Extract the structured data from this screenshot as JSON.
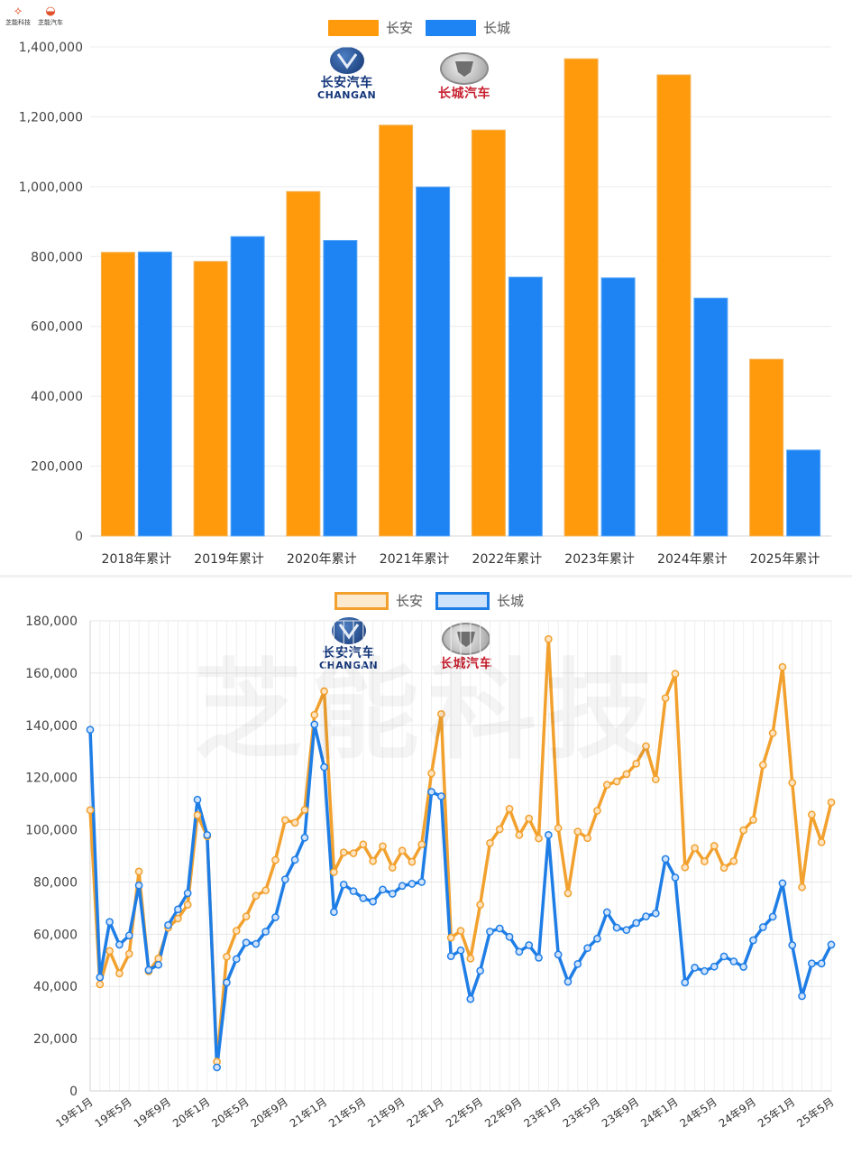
{
  "watermark": {
    "brand1": "芝能科技",
    "brand2": "芝能汽车",
    "big": "芝能科技"
  },
  "logos": {
    "changan_cn": "长安汽车",
    "changan_en": "CHANGAN",
    "greatwall_cn": "长城汽车"
  },
  "colors": {
    "changan": "#FF9A0D",
    "greatwall": "#1E84F4",
    "changan_line": "#F2A12E",
    "greatwall_line": "#1F7EE6"
  },
  "chart_data": [
    {
      "type": "bar",
      "categories": [
        "2018年累计",
        "2019年累计",
        "2020年累计",
        "2021年累计",
        "2022年累计",
        "2023年累计",
        "2024年累计",
        "2025年累计"
      ],
      "series": [
        {
          "name": "长安",
          "values": [
            812000,
            786000,
            986000,
            1176000,
            1162000,
            1366000,
            1320000,
            506000
          ]
        },
        {
          "name": "长城",
          "values": [
            813000,
            857000,
            846000,
            999000,
            741000,
            739000,
            681000,
            246000
          ]
        }
      ],
      "ylim": [
        0,
        1400000
      ],
      "yticks": [
        "0",
        "200,000",
        "400,000",
        "600,000",
        "800,000",
        "1,000,000",
        "1,200,000",
        "1,400,000"
      ],
      "grid": true,
      "legend": "top-center"
    },
    {
      "type": "line",
      "x": [
        "19年1月",
        "19年2月",
        "19年3月",
        "19年4月",
        "19年5月",
        "19年6月",
        "19年7月",
        "19年8月",
        "19年9月",
        "19年10月",
        "19年11月",
        "19年12月",
        "20年1月",
        "20年2月",
        "20年3月",
        "20年4月",
        "20年5月",
        "20年6月",
        "20年7月",
        "20年8月",
        "20年9月",
        "20年10月",
        "20年11月",
        "20年12月",
        "21年1月",
        "21年2月",
        "21年3月",
        "21年4月",
        "21年5月",
        "21年6月",
        "21年7月",
        "21年8月",
        "21年9月",
        "21年10月",
        "21年11月",
        "21年12月",
        "22年1月",
        "22年2月",
        "22年3月",
        "22年4月",
        "22年5月",
        "22年6月",
        "22年7月",
        "22年8月",
        "22年9月",
        "22年10月",
        "22年11月",
        "22年12月",
        "23年1月",
        "23年2月",
        "23年3月",
        "23年4月",
        "23年5月",
        "23年6月",
        "23年7月",
        "23年8月",
        "23年9月",
        "23年10月",
        "23年11月",
        "23年12月",
        "24年1月",
        "24年2月",
        "24年3月",
        "24年4月",
        "24年5月",
        "24年6月",
        "24年7月",
        "24年8月",
        "24年9月",
        "24年10月",
        "24年11月",
        "24年12月",
        "25年1月",
        "25年2月",
        "25年3月",
        "25年4月",
        "25年5月"
      ],
      "xticks": [
        "19年1月",
        "19年5月",
        "19年9月",
        "20年1月",
        "20年5月",
        "20年9月",
        "21年1月",
        "21年5月",
        "21年9月",
        "22年1月",
        "22年5月",
        "22年9月",
        "23年1月",
        "23年5月",
        "23年9月",
        "24年1月",
        "24年5月",
        "24年9月",
        "25年1月",
        "25年5月"
      ],
      "series": [
        {
          "name": "长安",
          "values": [
            107500,
            40800,
            53600,
            45000,
            52500,
            84000,
            45800,
            50700,
            62500,
            66000,
            71300,
            105600,
            97500,
            11200,
            51400,
            61300,
            66800,
            74700,
            76800,
            88400,
            103700,
            102700,
            107600,
            144000,
            153000,
            83800,
            91300,
            91000,
            94400,
            88000,
            93700,
            85500,
            92000,
            87700,
            94400,
            121600,
            144300,
            58700,
            61300,
            50700,
            71300,
            94900,
            100200,
            108000,
            98000,
            104300,
            96700,
            173000,
            100600,
            75700,
            99300,
            96800,
            107300,
            117200,
            118500,
            121300,
            125300,
            132000,
            119300,
            150400,
            159700,
            85600,
            93000,
            87900,
            93800,
            85400,
            88000,
            99800,
            103800,
            124800,
            137000,
            162300,
            118000,
            78000,
            105800,
            95200,
            110500
          ]
        },
        {
          "name": "长城",
          "values": [
            138300,
            43500,
            64700,
            56000,
            59500,
            78700,
            46300,
            48300,
            63500,
            69500,
            75700,
            111500,
            98000,
            9000,
            41500,
            50500,
            56800,
            56300,
            61000,
            66500,
            81000,
            88500,
            97000,
            140300,
            124000,
            68500,
            79000,
            76500,
            73800,
            72500,
            77100,
            75500,
            78500,
            79300,
            80000,
            114500,
            112800,
            51600,
            53800,
            35200,
            46000,
            61000,
            62200,
            59000,
            53300,
            55800,
            51000,
            98000,
            52200,
            41800,
            48600,
            54700,
            58300,
            68400,
            62500,
            61600,
            64300,
            66800,
            68000,
            88800,
            81700,
            41500,
            47200,
            45900,
            47600,
            51500,
            49600,
            47500,
            57700,
            62700,
            66700,
            79500,
            55800,
            36300,
            48800,
            48800,
            56000
          ]
        }
      ],
      "ylim": [
        0,
        180000
      ],
      "yticks": [
        "0",
        "20,000",
        "40,000",
        "60,000",
        "80,000",
        "100,000",
        "120,000",
        "140,000",
        "160,000",
        "180,000"
      ],
      "grid": true,
      "legend": "top-center"
    }
  ]
}
